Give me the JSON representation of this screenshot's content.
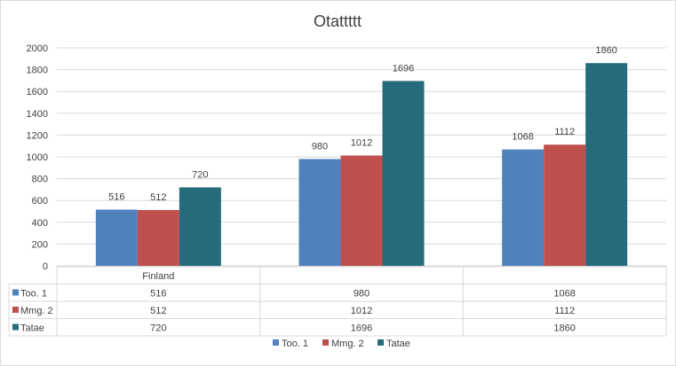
{
  "chart_data": {
    "type": "bar",
    "title": "Otattttt",
    "categories": [
      "Finland",
      "",
      ""
    ],
    "series": [
      {
        "name": "Too. 1",
        "values": [
          516,
          980,
          1068
        ],
        "color": "#4f81bd"
      },
      {
        "name": "Mmg. 2",
        "values": [
          512,
          1012,
          1112
        ],
        "color": "#c0504d"
      },
      {
        "name": "Tatae",
        "values": [
          720,
          1696,
          1860
        ],
        "color": "#256b7b"
      }
    ],
    "ylim": [
      0,
      2000
    ],
    "yticks": [
      0,
      200,
      400,
      600,
      800,
      1000,
      1200,
      1400,
      1600,
      1800,
      2000
    ],
    "grid": true,
    "data_table": true,
    "legend_position": "bottom"
  }
}
